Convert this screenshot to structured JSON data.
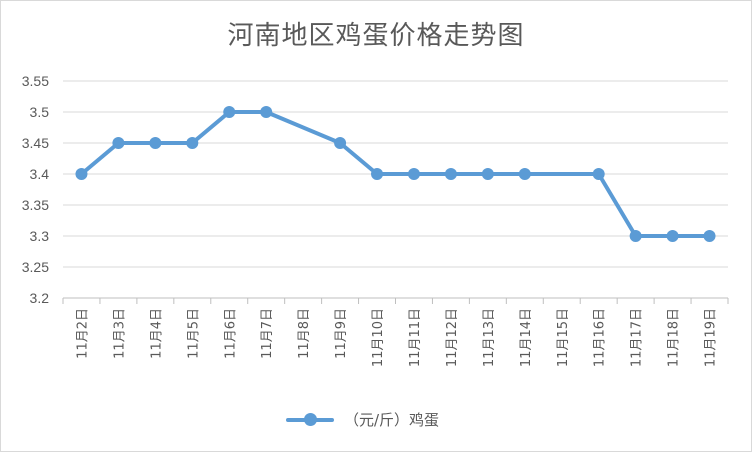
{
  "chart_data": {
    "type": "line",
    "title": "河南地区鸡蛋价格走势图",
    "categories": [
      "11月2日",
      "11月3日",
      "11月4日",
      "11月5日",
      "11月6日",
      "11月7日",
      "11月8日",
      "11月9日",
      "11月10日",
      "11月11日",
      "11月12日",
      "11月13日",
      "11月14日",
      "11月15日",
      "11月16日",
      "11月17日",
      "11月18日",
      "11月19日"
    ],
    "series": [
      {
        "name": "（元/斤）鸡蛋",
        "values": [
          3.4,
          3.45,
          3.45,
          3.45,
          3.5,
          3.5,
          null,
          3.45,
          3.4,
          3.4,
          3.4,
          3.4,
          3.4,
          null,
          3.4,
          3.3,
          3.3,
          3.3
        ],
        "color": "#5b9bd5"
      }
    ],
    "yticks": [
      "3.2",
      "3.25",
      "3.3",
      "3.35",
      "3.4",
      "3.45",
      "3.5",
      "3.55"
    ],
    "ylim": [
      3.2,
      3.55
    ],
    "grid": true,
    "legend": "bottom"
  }
}
